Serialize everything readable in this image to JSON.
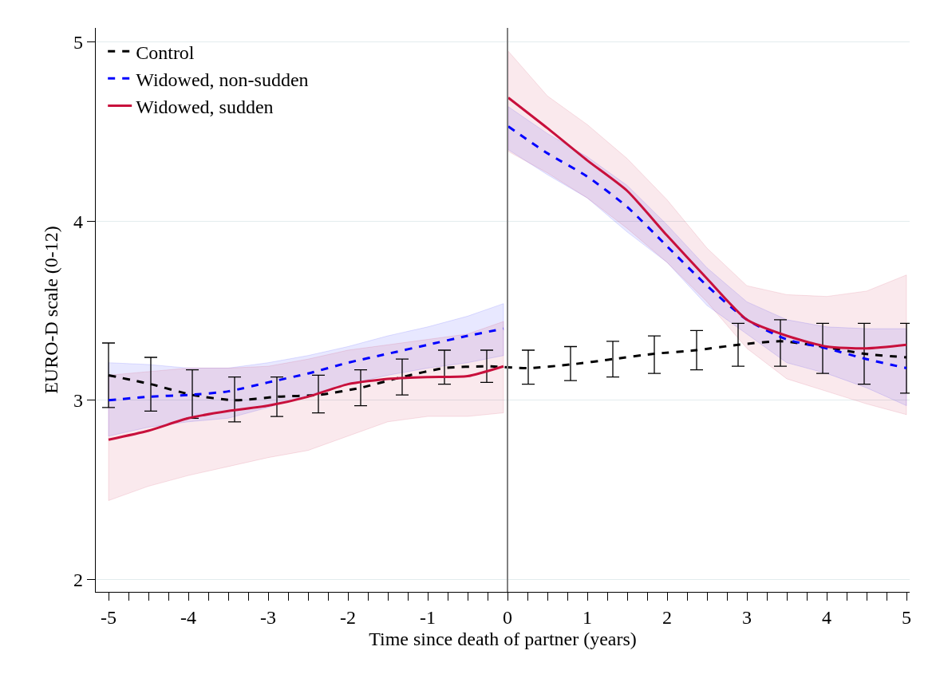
{
  "chart_data": {
    "type": "line",
    "xlabel": "Time since death of partner (years)",
    "ylabel": "EURO-D scale (0-12)",
    "xlim": [
      -5.16,
      5.04
    ],
    "ylim": [
      1.93,
      5.08
    ],
    "xticks": [
      -5,
      {
        "value": -4.75,
        "label": null
      },
      {
        "value": -4.5,
        "label": null
      },
      {
        "value": -4.25,
        "label": null
      },
      -4,
      {
        "value": -3.75,
        "label": null
      },
      {
        "value": -3.5,
        "label": null
      },
      {
        "value": -3.25,
        "label": null
      },
      -3,
      {
        "value": -2.75,
        "label": null
      },
      {
        "value": -2.5,
        "label": null
      },
      {
        "value": -2.25,
        "label": null
      },
      -2,
      {
        "value": -1.75,
        "label": null
      },
      {
        "value": -1.5,
        "label": null
      },
      {
        "value": -1.25,
        "label": null
      },
      -1,
      {
        "value": -0.75,
        "label": null
      },
      {
        "value": -0.5,
        "label": null
      },
      {
        "value": -0.25,
        "label": null
      },
      0,
      {
        "value": 0.25,
        "label": null
      },
      {
        "value": 0.5,
        "label": null
      },
      {
        "value": 0.75,
        "label": null
      },
      1,
      {
        "value": 1.25,
        "label": null
      },
      {
        "value": 1.5,
        "label": null
      },
      {
        "value": 1.75,
        "label": null
      },
      2,
      {
        "value": 2.25,
        "label": null
      },
      {
        "value": 2.5,
        "label": null
      },
      {
        "value": 2.75,
        "label": null
      },
      3,
      {
        "value": 3.25,
        "label": null
      },
      {
        "value": 3.5,
        "label": null
      },
      {
        "value": 3.75,
        "label": null
      },
      4,
      {
        "value": 4.25,
        "label": null
      },
      {
        "value": 4.5,
        "label": null
      },
      {
        "value": 4.75,
        "label": null
      },
      5
    ],
    "yticks": [
      2,
      3,
      4,
      5
    ],
    "grid": "y",
    "legend": "top left",
    "marker": "none",
    "ref_lines": [
      {
        "axis": "x",
        "value": 0,
        "color": "#808080"
      }
    ],
    "series": [
      {
        "name": "Control",
        "color": "#000000",
        "line_style": "dashed",
        "x": [
          -5,
          -4.47,
          -3.95,
          -3.42,
          -2.89,
          -2.37,
          -1.84,
          -1.32,
          -0.79,
          -0.26,
          0.26,
          0.79,
          1.32,
          1.84,
          2.37,
          2.89,
          3.42,
          3.95,
          4.47,
          5
        ],
        "values": [
          3.14,
          3.09,
          3.03,
          3.0,
          3.02,
          3.03,
          3.07,
          3.13,
          3.18,
          3.19,
          3.18,
          3.2,
          3.23,
          3.26,
          3.28,
          3.31,
          3.33,
          3.3,
          3.26,
          3.24
        ],
        "errors": [
          [
            2.96,
            3.32
          ],
          [
            2.94,
            3.24
          ],
          [
            2.9,
            3.17
          ],
          [
            2.88,
            3.13
          ],
          [
            2.91,
            3.13
          ],
          [
            2.93,
            3.14
          ],
          [
            2.97,
            3.17
          ],
          [
            3.03,
            3.23
          ],
          [
            3.09,
            3.28
          ],
          [
            3.1,
            3.28
          ],
          [
            3.09,
            3.28
          ],
          [
            3.11,
            3.3
          ],
          [
            3.13,
            3.33
          ],
          [
            3.15,
            3.36
          ],
          [
            3.17,
            3.39
          ],
          [
            3.19,
            3.43
          ],
          [
            3.19,
            3.45
          ],
          [
            3.15,
            3.43
          ],
          [
            3.09,
            3.43
          ],
          [
            3.04,
            3.43
          ]
        ]
      },
      {
        "name": "Widowed, non-sudden",
        "color": "#0000ff",
        "line_style": "dashed",
        "x": [
          -5,
          -4.5,
          -4,
          -3.5,
          -3,
          -2.5,
          -2,
          -1.5,
          -1,
          -0.5,
          -0.05,
          -0.02,
          0.01,
          0.5,
          1,
          1.5,
          2,
          2.5,
          3,
          3.5,
          4,
          4.5,
          5
        ],
        "values": [
          3.0,
          3.02,
          3.03,
          3.05,
          3.1,
          3.15,
          3.21,
          3.26,
          3.31,
          3.36,
          3.4,
          null,
          4.53,
          4.38,
          4.25,
          4.08,
          3.86,
          3.64,
          3.45,
          3.34,
          3.29,
          3.23,
          3.18
        ],
        "lower": [
          2.8,
          2.85,
          2.88,
          2.9,
          2.96,
          3.03,
          3.09,
          3.14,
          3.18,
          3.21,
          3.25,
          null,
          4.4,
          4.26,
          4.13,
          3.94,
          3.77,
          3.53,
          3.37,
          3.21,
          3.15,
          3.07,
          2.97
        ],
        "upper": [
          3.21,
          3.2,
          3.18,
          3.18,
          3.21,
          3.25,
          3.3,
          3.36,
          3.41,
          3.47,
          3.54,
          null,
          4.64,
          4.49,
          4.36,
          4.2,
          3.98,
          3.74,
          3.55,
          3.45,
          3.41,
          3.4,
          3.4
        ]
      },
      {
        "name": "Widowed, sudden",
        "color": "#c8103c",
        "line_style": "solid",
        "x": [
          -5,
          -4.5,
          -4,
          -3.5,
          -3,
          -2.5,
          -2,
          -1.5,
          -1,
          -0.5,
          -0.05,
          -0.02,
          0.01,
          0.5,
          1,
          1.5,
          2,
          2.5,
          3,
          3.5,
          4,
          4.5,
          5
        ],
        "values": [
          2.78,
          2.83,
          2.9,
          2.94,
          2.97,
          3.02,
          3.09,
          3.12,
          3.13,
          3.135,
          3.19,
          null,
          4.69,
          4.52,
          4.34,
          4.17,
          3.92,
          3.68,
          3.45,
          3.36,
          3.3,
          3.29,
          3.31
        ],
        "lower": [
          2.44,
          2.52,
          2.58,
          2.63,
          2.68,
          2.72,
          2.8,
          2.88,
          2.91,
          2.91,
          2.93,
          null,
          4.39,
          4.27,
          4.13,
          3.96,
          3.77,
          3.55,
          3.29,
          3.12,
          3.05,
          2.98,
          2.92
        ],
        "upper": [
          3.14,
          3.16,
          3.18,
          3.18,
          3.19,
          3.23,
          3.28,
          3.31,
          3.34,
          3.37,
          3.44,
          null,
          4.95,
          4.7,
          4.54,
          4.35,
          4.12,
          3.85,
          3.64,
          3.59,
          3.58,
          3.61,
          3.7
        ]
      }
    ]
  }
}
